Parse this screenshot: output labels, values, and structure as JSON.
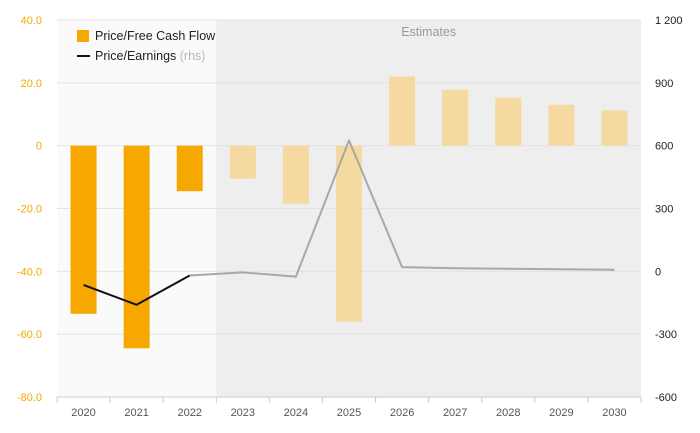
{
  "chart_data": {
    "type": "bar",
    "categories": [
      "2020",
      "2021",
      "2022",
      "2023",
      "2024",
      "2025",
      "2026",
      "2027",
      "2028",
      "2029",
      "2030"
    ],
    "estimates_start_index": 3,
    "estimates_label": "Estimates",
    "series": [
      {
        "name": "Price/Free Cash Flow",
        "type": "bar",
        "axis": "left",
        "color": "#f6a800",
        "estimate_color": "#f5d9a0",
        "values": [
          -53.5,
          -64.5,
          -14.5,
          -10.5,
          -18.5,
          -56.0,
          22.0,
          17.8,
          15.3,
          13.0,
          11.2
        ]
      },
      {
        "name": "Price/Earnings",
        "name_suffix": "(rhs)",
        "type": "line",
        "axis": "right",
        "color": "#111111",
        "estimate_color": "#a8a8a8",
        "values": [
          -65,
          -160,
          -20,
          -5,
          -25,
          625,
          20,
          15,
          12,
          10,
          8
        ]
      }
    ],
    "y_left": {
      "ylim": [
        -80,
        40
      ],
      "ticks": [
        40,
        20,
        0,
        -20,
        -40,
        -60,
        -80
      ],
      "tick_labels": [
        "40.0",
        "20.0",
        "0",
        "-20.0",
        "-40.0",
        "-60.0",
        "-80.0"
      ],
      "color": "#f6a800"
    },
    "y_right": {
      "ylim": [
        -600,
        1200
      ],
      "ticks": [
        1200,
        900,
        600,
        300,
        0,
        -300,
        -600
      ],
      "tick_labels": [
        "1 200",
        "900",
        "600",
        "300",
        "0",
        "-300",
        "-600"
      ]
    },
    "grid": true,
    "legend_position": "top-left",
    "colors": {
      "estimates_background": "#eeeeee",
      "plot_background": "#fafafa",
      "grid": "#e3e3e3"
    }
  }
}
